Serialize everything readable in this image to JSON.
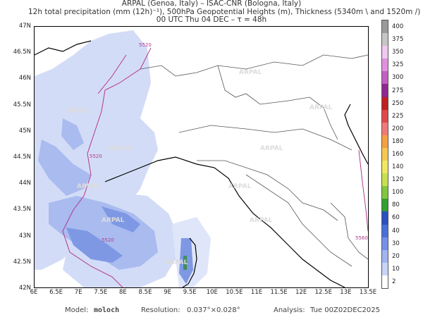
{
  "header": {
    "line1": "ARPAL (Genoa, Italy)  –  ISAC-CNR (Bologna, Italy)",
    "line2": "12h total precipitation (mm (12h)⁻¹), 500hPa Geopotential Heights (m), Thickness (5340m \\ and 1520m /)",
    "line3": "00 UTC Thu 04 DEC  –  τ = 48h"
  },
  "map": {
    "lat_labels": [
      "47N",
      "46.5N",
      "46N",
      "45.5N",
      "45N",
      "44.5N",
      "44N",
      "43.5N",
      "43N",
      "42.5N",
      "42N"
    ],
    "lon_labels": [
      "6E",
      "6.5E",
      "7E",
      "7.5E",
      "8E",
      "8.5E",
      "9E",
      "9.5E",
      "10E",
      "10.5E",
      "11E",
      "11.5E",
      "12E",
      "12.5E",
      "13E",
      "13.5E"
    ],
    "lat_range": [
      42,
      47
    ],
    "lon_range": [
      6,
      13.5
    ],
    "watermark": "ARPAL",
    "height_contours": [
      "5520",
      "5520",
      "5520",
      "5560"
    ],
    "colors": {
      "contour": "#b23a8a",
      "coast": "#000000",
      "border": "#444444",
      "precip_light": "#c8d4f5",
      "precip_mid": "#8fa6ea",
      "precip_heavy": "#5f79d6",
      "precip_max": "#2e8f4f"
    }
  },
  "colorbar": {
    "labels": [
      "400",
      "375",
      "350",
      "325",
      "300",
      "275",
      "250",
      "225",
      "200",
      "180",
      "160",
      "140",
      "120",
      "100",
      "80",
      "60",
      "40",
      "30",
      "20",
      "10",
      "2"
    ],
    "colors": [
      "#9a9a9a",
      "#c5c5c5",
      "#f0c8f0",
      "#e090e0",
      "#c060c0",
      "#902890",
      "#c02020",
      "#e04848",
      "#f07878",
      "#f5a040",
      "#f5c850",
      "#f0e860",
      "#c8e050",
      "#80c840",
      "#30a030",
      "#2a4fc0",
      "#4a6fd8",
      "#7390e8",
      "#a0b4f0",
      "#c8d4f8",
      "#ffffff"
    ]
  },
  "footer": {
    "model_label": "Model:",
    "model_value": "moloch",
    "resolution_label": "Resolution:",
    "resolution_value": "0.037°×0.028°",
    "analysis_label": "Analysis:",
    "analysis_value": "Tue 00Z02DEC2025"
  }
}
